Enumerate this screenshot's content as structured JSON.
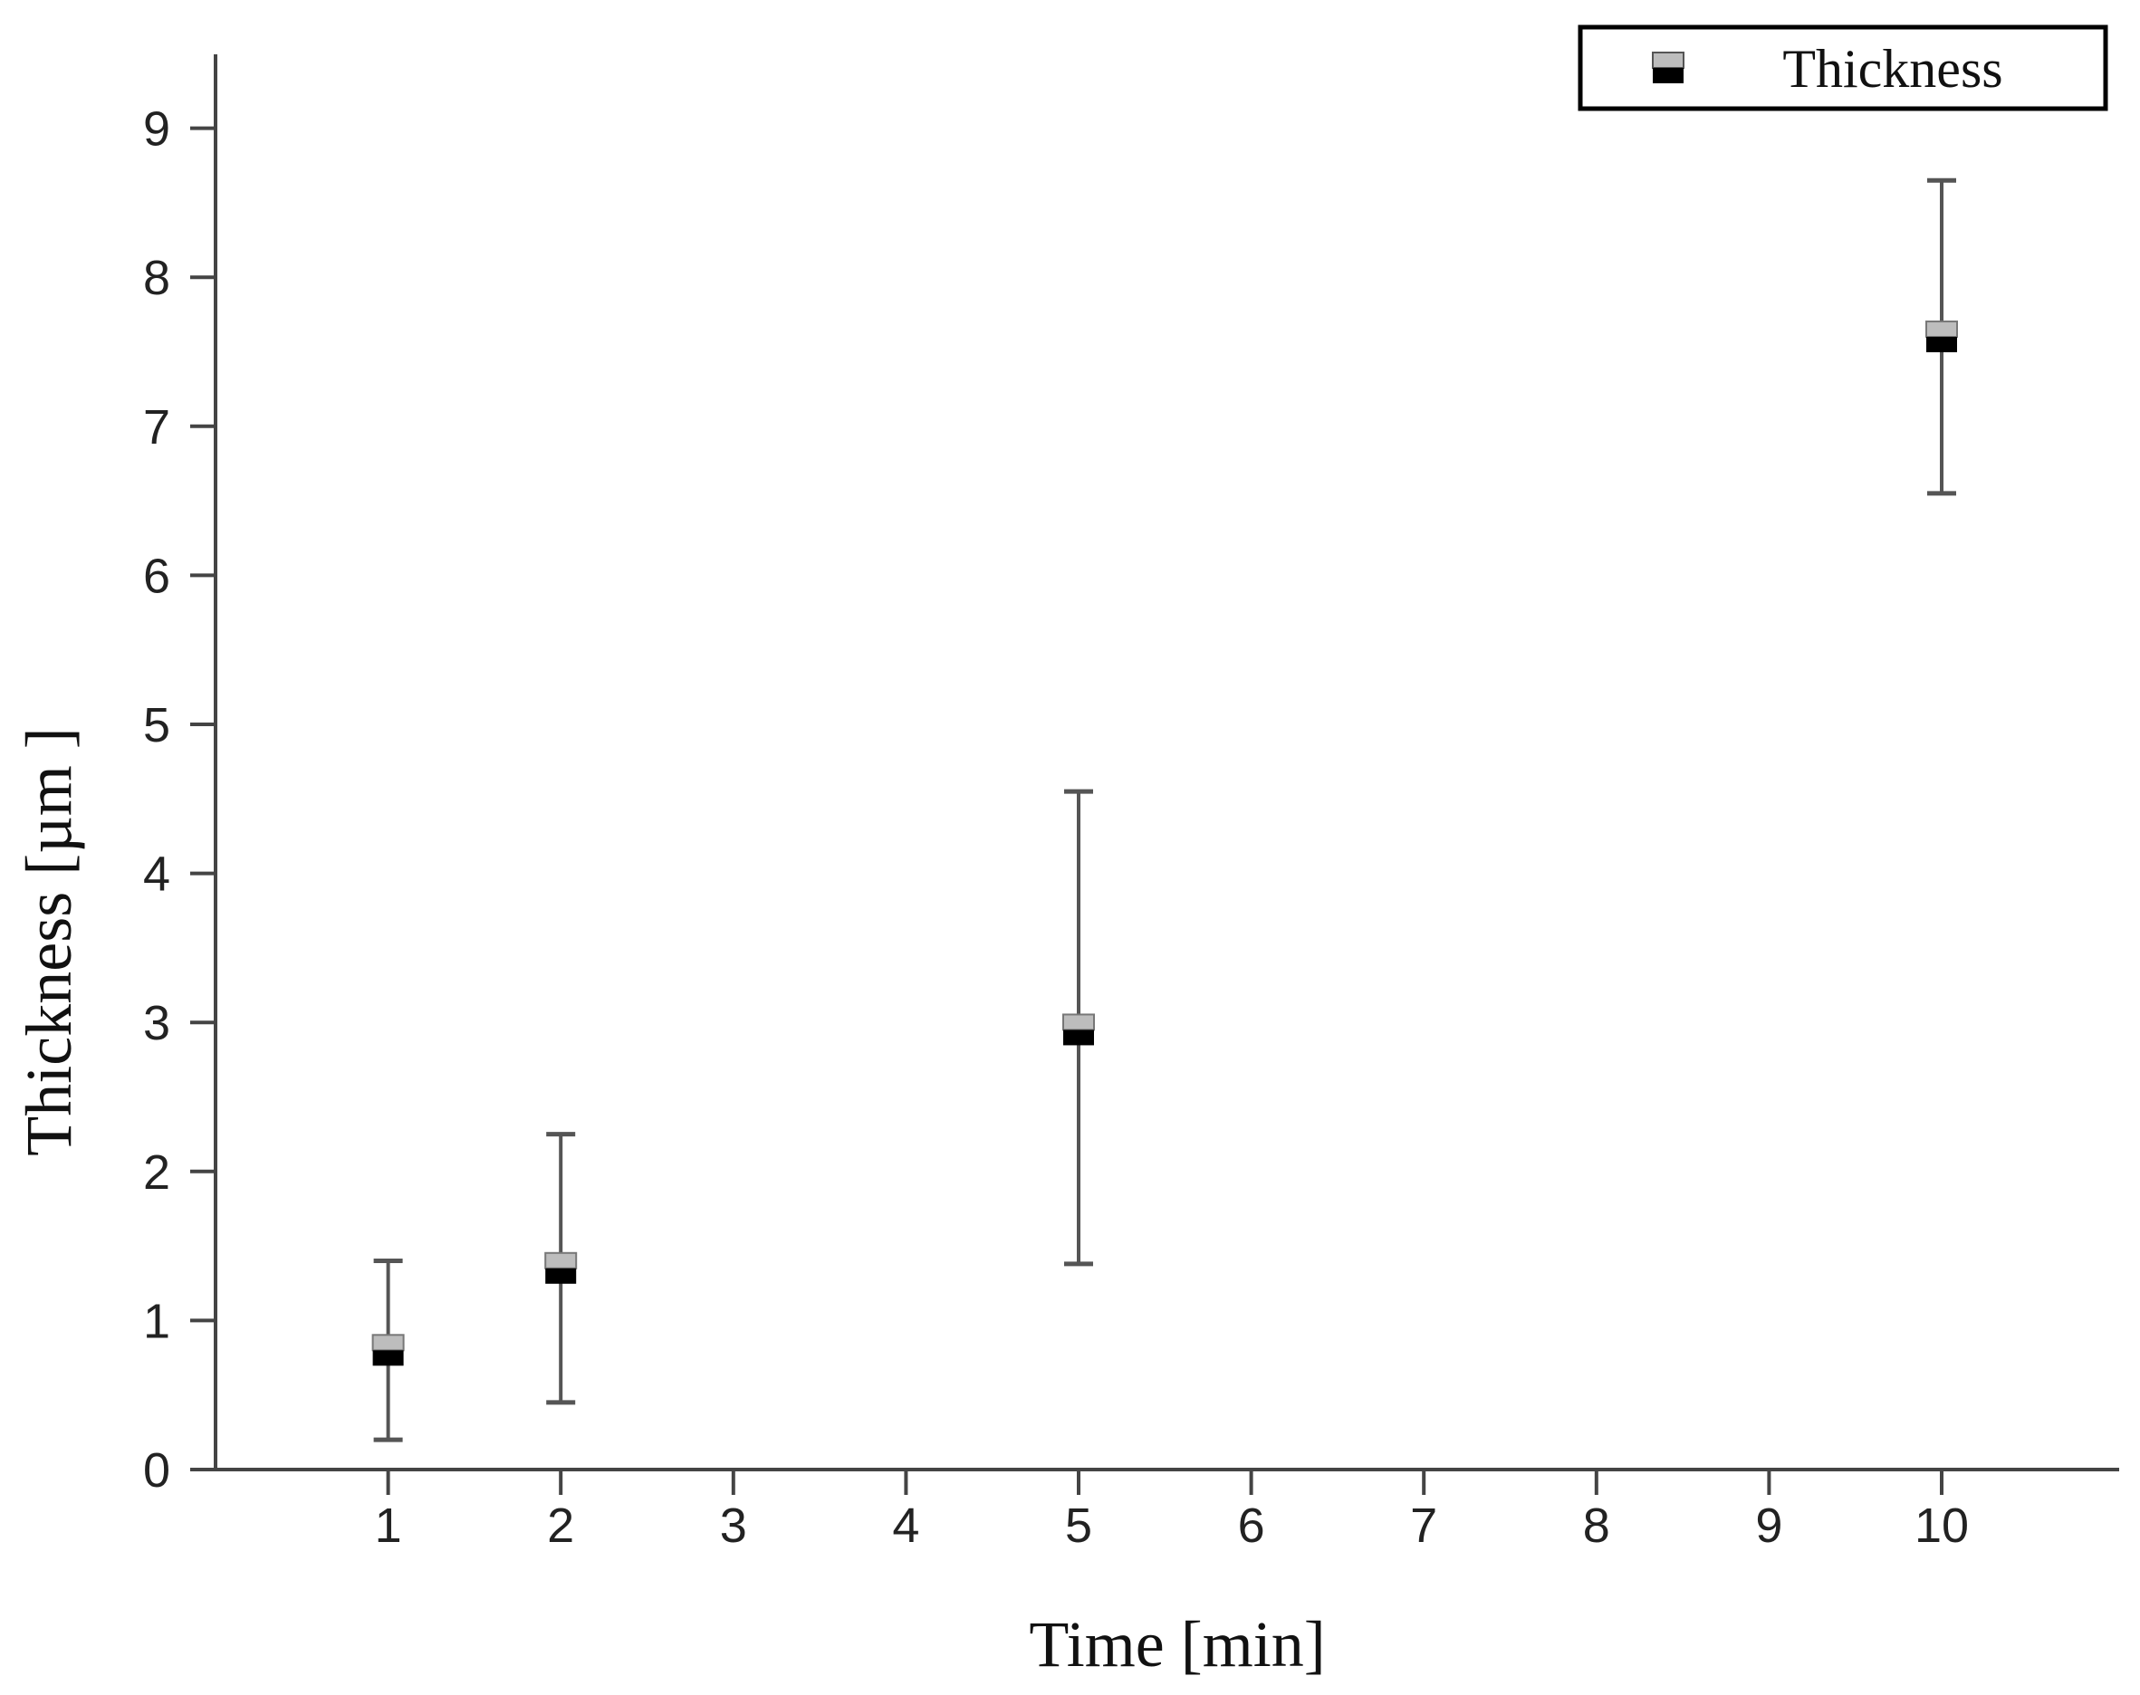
{
  "chart_data": {
    "type": "scatter",
    "xlabel": "Time [min]",
    "ylabel": "Thickness [µm ]",
    "xlim": [
      0,
      11
    ],
    "ylim": [
      0,
      9.5
    ],
    "x_ticks": [
      "1",
      "2",
      "3",
      "4",
      "5",
      "6",
      "7",
      "8",
      "9",
      "10"
    ],
    "y_ticks": [
      "0",
      "1",
      "2",
      "3",
      "4",
      "5",
      "6",
      "7",
      "8",
      "9"
    ],
    "grid": false,
    "legend": {
      "position": "top-right",
      "entries": [
        "Thickness"
      ]
    },
    "series": [
      {
        "name": "Thickness",
        "marker": "half-filled-square",
        "color_top": "#bdbdbd",
        "color_bottom": "#000000",
        "points": [
          {
            "x": 1,
            "y": 0.8,
            "y_low": 0.2,
            "y_high": 1.4
          },
          {
            "x": 2,
            "y": 1.35,
            "y_low": 0.45,
            "y_high": 2.25
          },
          {
            "x": 5,
            "y": 2.95,
            "y_low": 1.38,
            "y_high": 4.55
          },
          {
            "x": 10,
            "y": 7.6,
            "y_low": 6.55,
            "y_high": 8.65
          }
        ]
      }
    ]
  }
}
